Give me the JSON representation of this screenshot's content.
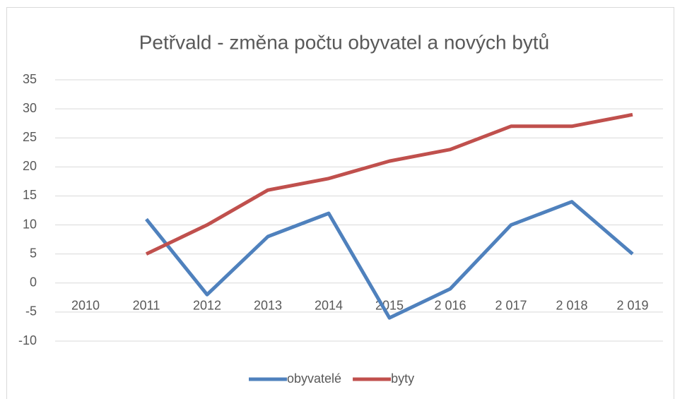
{
  "chart_data": {
    "type": "line",
    "title": "Petřvald - změna počtu obyvatel a nových bytů",
    "categories": [
      "2010",
      "2011",
      "2012",
      "2013",
      "2014",
      "2015",
      "2 016",
      "2 017",
      "2 018",
      "2 019"
    ],
    "series": [
      {
        "name": "obyvatelé",
        "color": "#4f81bd",
        "values": [
          null,
          11,
          -2,
          8,
          12,
          -6,
          -1,
          10,
          14,
          5
        ]
      },
      {
        "name": "byty",
        "color": "#c0504d",
        "values": [
          null,
          5,
          10,
          16,
          18,
          21,
          23,
          27,
          27,
          29
        ]
      }
    ],
    "ylim": [
      -10,
      35
    ],
    "yticks": [
      -10,
      -5,
      0,
      5,
      10,
      15,
      20,
      25,
      30,
      35
    ],
    "grid": true,
    "legend": "bottom"
  }
}
